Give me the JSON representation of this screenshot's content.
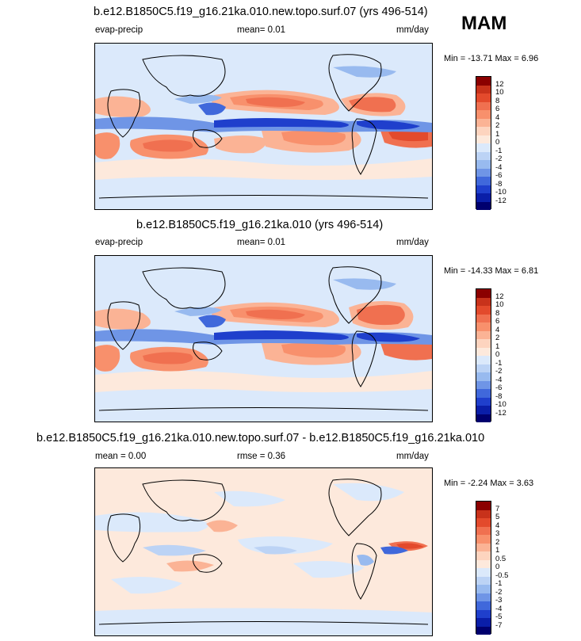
{
  "season": "MAM",
  "panels": [
    {
      "title": "b.e12.B1850C5.f19_g16.21ka.010.new.topo.surf.07 (yrs 496-514)",
      "left_label": "evap-precip",
      "center_label": "mean=   0.01",
      "units": "mm/day",
      "minmax": "Min = -13.71 Max =   6.96",
      "levels": [
        "12",
        "10",
        "8",
        "6",
        "4",
        "2",
        "1",
        "0",
        "-1",
        "-2",
        "-4",
        "-6",
        "-8",
        "-10",
        "-12"
      ],
      "colors": [
        "#8b0000",
        "#c8321b",
        "#e34a2c",
        "#f07050",
        "#f8906c",
        "#fbb395",
        "#fdd4bf",
        "#fde9dc",
        "#dbe9fb",
        "#bcd3f5",
        "#98baef",
        "#6f95e6",
        "#4068db",
        "#1f3fcc",
        "#0a1ea8",
        "#00006e"
      ]
    },
    {
      "title": "b.e12.B1850C5.f19_g16.21ka.010 (yrs 496-514)",
      "left_label": "evap-precip",
      "center_label": "mean=   0.01",
      "units": "mm/day",
      "minmax": "Min = -14.33 Max =   6.81",
      "levels": [
        "12",
        "10",
        "8",
        "6",
        "4",
        "2",
        "1",
        "0",
        "-1",
        "-2",
        "-4",
        "-6",
        "-8",
        "-10",
        "-12"
      ],
      "colors": [
        "#8b0000",
        "#c8321b",
        "#e34a2c",
        "#f07050",
        "#f8906c",
        "#fbb395",
        "#fdd4bf",
        "#fde9dc",
        "#dbe9fb",
        "#bcd3f5",
        "#98baef",
        "#6f95e6",
        "#4068db",
        "#1f3fcc",
        "#0a1ea8",
        "#00006e"
      ]
    },
    {
      "title": "b.e12.B1850C5.f19_g16.21ka.010.new.topo.surf.07 - b.e12.B1850C5.f19_g16.21ka.010",
      "left_label": "mean =   0.00",
      "center_label": "rmse =   0.36",
      "units": "mm/day",
      "minmax": "Min = -2.24 Max =   3.63",
      "levels": [
        "7",
        "5",
        "4",
        "3",
        "2",
        "1",
        "0.5",
        "0",
        "-0.5",
        "-1",
        "-2",
        "-3",
        "-4",
        "-5",
        "-7"
      ],
      "colors": [
        "#8b0000",
        "#c8321b",
        "#e34a2c",
        "#f07050",
        "#f8906c",
        "#fbb395",
        "#fdd4bf",
        "#fde9dc",
        "#dbe9fb",
        "#bcd3f5",
        "#98baef",
        "#6f95e6",
        "#4068db",
        "#1f3fcc",
        "#0a1ea8",
        "#00006e"
      ]
    }
  ],
  "chart_data": [
    {
      "type": "heatmap",
      "title": "b.e12.B1850C5.f19_g16.21ka.010.new.topo.surf.07 (yrs 496-514)",
      "variable": "evap-precip",
      "units": "mm/day",
      "mean": 0.01,
      "min": -13.71,
      "max": 6.96,
      "contour_levels": [
        -12,
        -10,
        -8,
        -6,
        -4,
        -2,
        -1,
        0,
        1,
        2,
        4,
        6,
        8,
        10,
        12
      ]
    },
    {
      "type": "heatmap",
      "title": "b.e12.B1850C5.f19_g16.21ka.010 (yrs 496-514)",
      "variable": "evap-precip",
      "units": "mm/day",
      "mean": 0.01,
      "min": -14.33,
      "max": 6.81,
      "contour_levels": [
        -12,
        -10,
        -8,
        -6,
        -4,
        -2,
        -1,
        0,
        1,
        2,
        4,
        6,
        8,
        10,
        12
      ]
    },
    {
      "type": "heatmap",
      "title": "b.e12.B1850C5.f19_g16.21ka.010.new.topo.surf.07 - b.e12.B1850C5.f19_g16.21ka.010",
      "units": "mm/day",
      "mean": 0.0,
      "rmse": 0.36,
      "min": -2.24,
      "max": 3.63,
      "contour_levels": [
        -7,
        -5,
        -4,
        -3,
        -2,
        -1,
        -0.5,
        0,
        0.5,
        1,
        2,
        3,
        4,
        5,
        7
      ]
    }
  ]
}
